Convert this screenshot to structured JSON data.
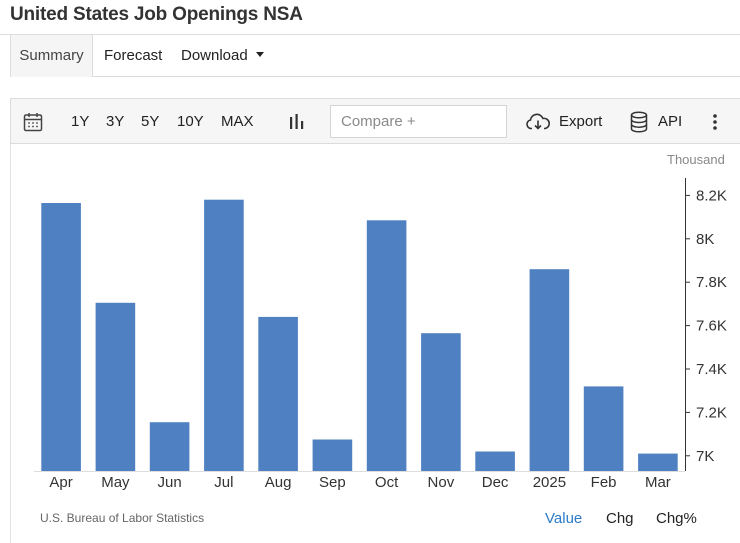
{
  "page": {
    "title": "United States Job Openings NSA"
  },
  "tabs": [
    {
      "label": "Summary",
      "active": true
    },
    {
      "label": "Forecast",
      "active": false
    },
    {
      "label": "Download",
      "active": false
    }
  ],
  "toolbar": {
    "calendar_icon": "calendar-icon",
    "ranges": [
      "1Y",
      "3Y",
      "5Y",
      "10Y",
      "MAX"
    ],
    "chart_type_icon": "bar-chart-icon",
    "compare_placeholder": "Compare +",
    "export_label": "Export",
    "export_icon": "cloud-download-icon",
    "api_label": "API",
    "api_icon": "database-icon",
    "more_icon": "more-vertical-icon"
  },
  "chart_data": {
    "type": "bar",
    "unit_label": "Thousand",
    "categories": [
      "Apr",
      "May",
      "Jun",
      "Jul",
      "Aug",
      "Sep",
      "Oct",
      "Nov",
      "Dec",
      "2025",
      "Feb",
      "Mar"
    ],
    "values": [
      8165,
      7705,
      7155,
      8180,
      7640,
      7075,
      8085,
      7565,
      7020,
      7860,
      7320,
      7010
    ],
    "y_ticks": [
      "7K",
      "7.2K",
      "7.4K",
      "7.6K",
      "7.8K",
      "8K",
      "8.2K"
    ],
    "y_tick_values": [
      7000,
      7200,
      7400,
      7600,
      7800,
      8000,
      8200
    ],
    "ylim": [
      6930,
      8280
    ],
    "axis_side": "right",
    "grid": false,
    "bar_color": "#4f81c2"
  },
  "footer": {
    "source": "U.S. Bureau of Labor Statistics",
    "view_tabs": [
      {
        "label": "Value",
        "active": true
      },
      {
        "label": "Chg",
        "active": false
      },
      {
        "label": "Chg%",
        "active": false
      }
    ]
  }
}
